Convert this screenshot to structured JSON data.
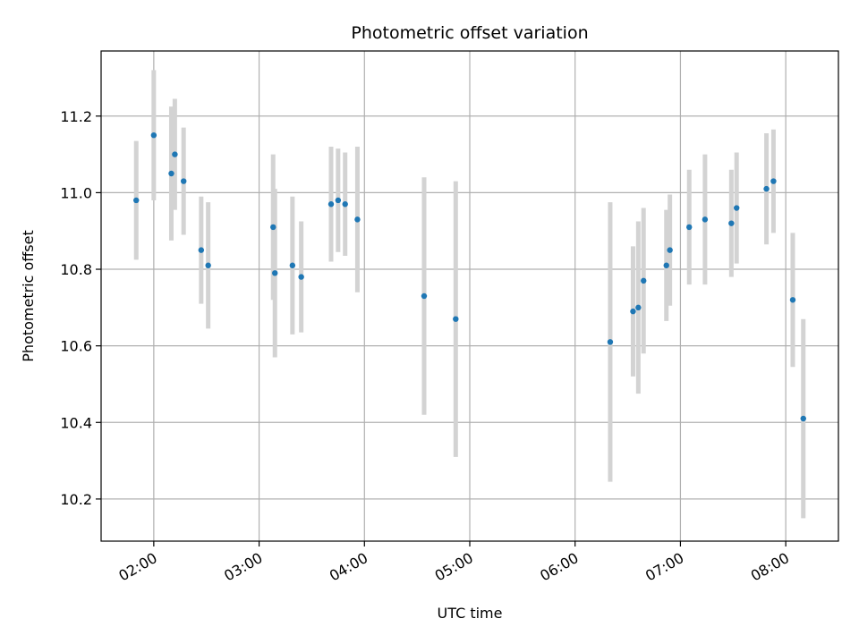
{
  "chart_data": {
    "type": "scatter",
    "title": "Photometric offset variation",
    "xlabel": "UTC time",
    "ylabel": "Photometric offset",
    "x_unit": "UTC time (HH:MM)",
    "xlim": [
      "01:30",
      "08:30"
    ],
    "ylim": [
      10.09,
      11.37
    ],
    "x_ticks": [
      "02:00",
      "03:00",
      "04:00",
      "05:00",
      "06:00",
      "07:00",
      "08:00"
    ],
    "y_ticks": [
      "10.2",
      "10.4",
      "10.6",
      "10.8",
      "11.0",
      "11.2"
    ],
    "grid": true,
    "legend": "none",
    "colors": {
      "point": "#1f77b4",
      "errorbar": "#d3d3d3",
      "grid": "#b0b0b0"
    },
    "series": [
      {
        "points": [
          {
            "x": "01:50",
            "y": 10.98,
            "err": 0.155
          },
          {
            "x": "02:00",
            "y": 11.15,
            "err": 0.17
          },
          {
            "x": "02:10",
            "y": 11.05,
            "err": 0.175
          },
          {
            "x": "02:12",
            "y": 11.1,
            "err": 0.145
          },
          {
            "x": "02:17",
            "y": 11.03,
            "err": 0.14
          },
          {
            "x": "02:27",
            "y": 10.85,
            "err": 0.14
          },
          {
            "x": "02:31",
            "y": 10.81,
            "err": 0.165
          },
          {
            "x": "03:08",
            "y": 10.91,
            "err": 0.19
          },
          {
            "x": "03:09",
            "y": 10.79,
            "err": 0.22
          },
          {
            "x": "03:19",
            "y": 10.81,
            "err": 0.18
          },
          {
            "x": "03:24",
            "y": 10.78,
            "err": 0.145
          },
          {
            "x": "03:41",
            "y": 10.97,
            "err": 0.15
          },
          {
            "x": "03:45",
            "y": 10.98,
            "err": 0.135
          },
          {
            "x": "03:49",
            "y": 10.97,
            "err": 0.135
          },
          {
            "x": "03:56",
            "y": 10.93,
            "err": 0.19
          },
          {
            "x": "04:34",
            "y": 10.73,
            "err": 0.31
          },
          {
            "x": "04:52",
            "y": 10.67,
            "err": 0.36
          },
          {
            "x": "06:20",
            "y": 10.61,
            "err": 0.365
          },
          {
            "x": "06:33",
            "y": 10.69,
            "err": 0.17
          },
          {
            "x": "06:36",
            "y": 10.7,
            "err": 0.225
          },
          {
            "x": "06:39",
            "y": 10.77,
            "err": 0.19
          },
          {
            "x": "06:52",
            "y": 10.81,
            "err": 0.145
          },
          {
            "x": "06:54",
            "y": 10.85,
            "err": 0.145
          },
          {
            "x": "07:05",
            "y": 10.91,
            "err": 0.15
          },
          {
            "x": "07:14",
            "y": 10.93,
            "err": 0.17
          },
          {
            "x": "07:29",
            "y": 10.92,
            "err": 0.14
          },
          {
            "x": "07:32",
            "y": 10.96,
            "err": 0.145
          },
          {
            "x": "07:49",
            "y": 11.01,
            "err": 0.145
          },
          {
            "x": "07:53",
            "y": 11.03,
            "err": 0.135
          },
          {
            "x": "08:04",
            "y": 10.72,
            "err": 0.175
          },
          {
            "x": "08:10",
            "y": 10.41,
            "err": 0.26
          }
        ]
      }
    ]
  }
}
